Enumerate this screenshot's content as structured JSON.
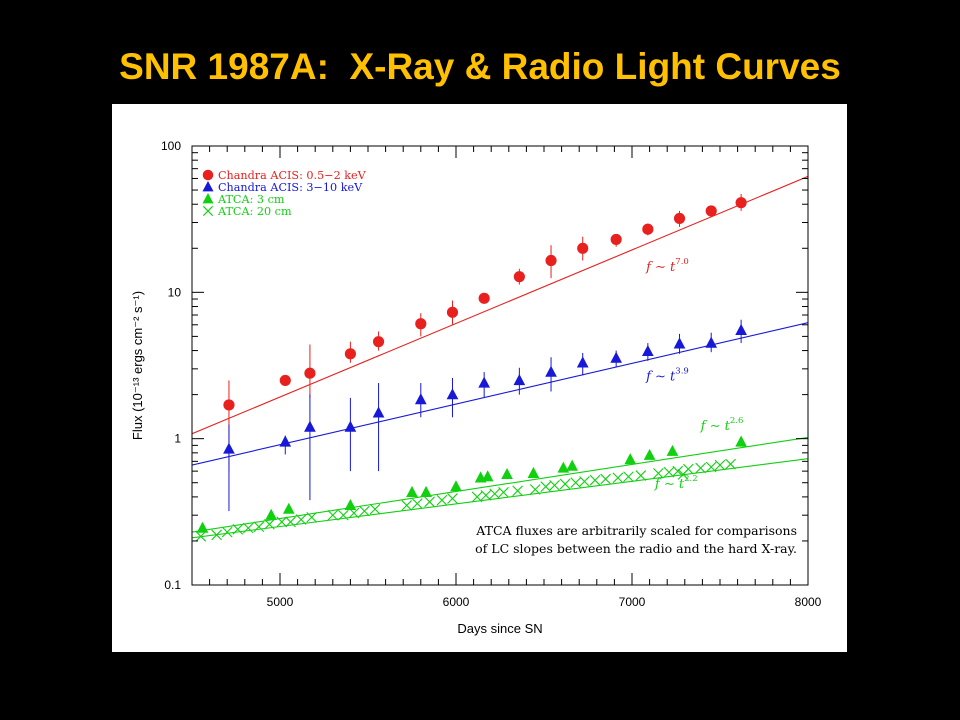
{
  "slide": {
    "title": "SNR 1987A:  X-Ray & Radio Light Curves"
  },
  "colors": {
    "background": "#000000",
    "title": "#ffc000",
    "xray_soft": "#e8201e",
    "xray_hard": "#1818d8",
    "radio": "#10d010"
  },
  "chart_data": {
    "type": "scatter",
    "title": "",
    "xlabel": "Days since SN",
    "ylabel": "Flux (10⁻¹³ ergs cm⁻² s⁻¹)",
    "xlim": [
      4500,
      8000
    ],
    "ylim": [
      0.1,
      100
    ],
    "yscale": "log",
    "grid": false,
    "legend_position": "top-left",
    "x_ticks": [
      "5000",
      "6000",
      "7000",
      "8000"
    ],
    "y_ticks": [
      "0.1",
      "1",
      "10",
      "100"
    ],
    "series": [
      {
        "name": "Chandra ACIS: 0.5−2 keV",
        "marker": "circle",
        "color": "#e8201e",
        "x": [
          4710,
          5030,
          5170,
          5400,
          5560,
          5800,
          5980,
          6160,
          6360,
          6540,
          6720,
          6910,
          7090,
          7270,
          7450,
          7620
        ],
        "y": [
          1.7,
          2.5,
          2.8,
          3.8,
          4.6,
          6.1,
          7.3,
          9.1,
          12.8,
          16.5,
          20,
          23,
          27,
          32,
          36,
          41
        ],
        "err_low": [
          0.6,
          2.3,
          1.9,
          3.3,
          4.0,
          5.0,
          6.0,
          8.6,
          11.3,
          12.5,
          16.5,
          20.5,
          24.5,
          28,
          33,
          36
        ],
        "err_high": [
          2.5,
          2.6,
          4.4,
          4.6,
          5.4,
          7.2,
          8.8,
          9.8,
          14.5,
          21,
          24,
          25,
          29.5,
          36,
          39,
          47
        ]
      },
      {
        "name": "Chandra ACIS: 3−10 keV",
        "marker": "triangle",
        "color": "#1818d8",
        "x": [
          4710,
          5030,
          5170,
          5400,
          5560,
          5800,
          5980,
          6160,
          6360,
          6540,
          6720,
          6910,
          7090,
          7270,
          7450,
          7620
        ],
        "y": [
          0.85,
          0.95,
          1.2,
          1.2,
          1.5,
          1.85,
          2.0,
          2.4,
          2.5,
          2.85,
          3.3,
          3.55,
          3.95,
          4.45,
          4.5,
          5.5
        ],
        "err_low": [
          0.32,
          0.78,
          0.38,
          0.6,
          0.6,
          1.4,
          1.4,
          1.9,
          2.0,
          2.1,
          2.7,
          3.1,
          3.4,
          3.8,
          3.9,
          4.5
        ],
        "err_high": [
          1.25,
          1.05,
          2.0,
          1.9,
          2.4,
          2.4,
          2.6,
          2.85,
          3.05,
          3.6,
          3.85,
          4.0,
          4.5,
          5.2,
          5.3,
          6.5
        ]
      },
      {
        "name": "ATCA: 3 cm",
        "marker": "triangle",
        "color": "#10d010",
        "x": [
          4560,
          4950,
          5050,
          5400,
          5750,
          5830,
          6000,
          6140,
          6180,
          6290,
          6440,
          6610,
          6660,
          6990,
          7100,
          7230,
          7620
        ],
        "y": [
          0.245,
          0.3,
          0.33,
          0.35,
          0.43,
          0.43,
          0.47,
          0.54,
          0.55,
          0.57,
          0.58,
          0.63,
          0.65,
          0.72,
          0.77,
          0.82,
          0.95
        ]
      },
      {
        "name": "ATCA: 20 cm",
        "marker": "x",
        "color": "#10d010",
        "x": [
          4550,
          4640,
          4700,
          4760,
          4820,
          4880,
          4940,
          5010,
          5060,
          5120,
          5180,
          5300,
          5360,
          5420,
          5480,
          5540,
          5720,
          5780,
          5850,
          5920,
          5980,
          6120,
          6170,
          6220,
          6270,
          6350,
          6450,
          6510,
          6560,
          6620,
          6680,
          6730,
          6790,
          6850,
          6920,
          6980,
          7050,
          7150,
          7210,
          7260,
          7290,
          7320,
          7390,
          7450,
          7500,
          7560
        ],
        "y": [
          0.215,
          0.22,
          0.23,
          0.24,
          0.245,
          0.25,
          0.26,
          0.27,
          0.27,
          0.28,
          0.29,
          0.3,
          0.3,
          0.31,
          0.32,
          0.33,
          0.35,
          0.36,
          0.37,
          0.38,
          0.39,
          0.4,
          0.41,
          0.42,
          0.43,
          0.44,
          0.45,
          0.47,
          0.48,
          0.49,
          0.5,
          0.51,
          0.52,
          0.53,
          0.54,
          0.55,
          0.56,
          0.58,
          0.59,
          0.6,
          0.57,
          0.62,
          0.63,
          0.64,
          0.66,
          0.67
        ]
      }
    ],
    "fits": [
      {
        "label": "f ∼ t",
        "exponent": "7.0",
        "color": "#e8201e",
        "x": [
          4500,
          8000
        ],
        "y": [
          1.08,
          62
        ],
        "label_x": 7080,
        "label_y": 14
      },
      {
        "label": "f ∼ t",
        "exponent": "3.9",
        "color": "#1818d8",
        "x": [
          4500,
          8000
        ],
        "y": [
          0.66,
          6.2
        ],
        "label_x": 7080,
        "label_y": 2.5
      },
      {
        "label": "f ∼ t",
        "exponent": "2.6",
        "color": "#10d010",
        "x": [
          4500,
          8000
        ],
        "y": [
          0.23,
          1.02
        ],
        "label_x": 7390,
        "label_y": 1.15
      },
      {
        "label": "f ∼ t",
        "exponent": "2.2",
        "color": "#10d010",
        "x": [
          4500,
          8000
        ],
        "y": [
          0.21,
          0.73
        ],
        "label_x": 7130,
        "label_y": 0.46
      }
    ],
    "annotations": [
      "ATCA fluxes are arbitrarily scaled for comparisons",
      "of LC slopes between the radio and the hard X-ray."
    ]
  }
}
